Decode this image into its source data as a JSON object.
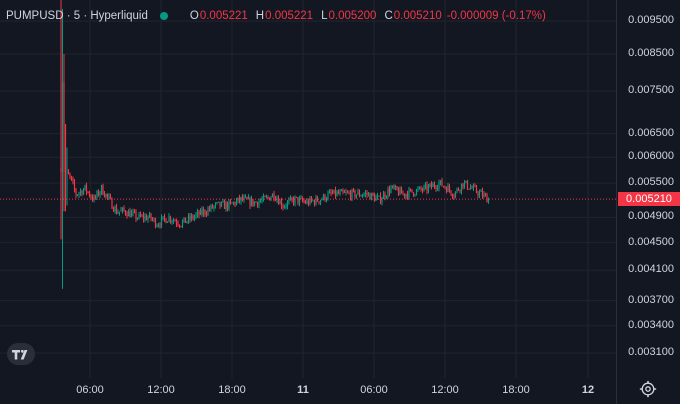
{
  "header": {
    "symbol": "PUMPUSD",
    "interval": "5",
    "exchange": "Hyperliquid",
    "title": "PUMPUSD · 5 · Hyperliquid",
    "status_color": "#089981",
    "ohlc": {
      "o_label": "O",
      "o_value": "0.005221",
      "h_label": "H",
      "h_value": "0.005221",
      "l_label": "L",
      "l_value": "0.005200",
      "c_label": "C",
      "c_value": "0.005210",
      "change": "-0.000009 (-0.17%)"
    }
  },
  "colors": {
    "background": "#131722",
    "grid": "#1f2430",
    "up": "#089981",
    "down": "#f23645",
    "text": "#d1d4dc"
  },
  "price_axis": {
    "ticks": [
      "0.009500",
      "0.008500",
      "0.007500",
      "0.006500",
      "0.006000",
      "0.005500",
      "0.004900",
      "0.004500",
      "0.004100",
      "0.003700",
      "0.003400",
      "0.003100"
    ],
    "last_price": "0.005210"
  },
  "time_axis": {
    "ticks": [
      {
        "label": "06:00",
        "bold": false
      },
      {
        "label": "12:00",
        "bold": false
      },
      {
        "label": "18:00",
        "bold": false
      },
      {
        "label": "11",
        "bold": true
      },
      {
        "label": "06:00",
        "bold": false
      },
      {
        "label": "12:00",
        "bold": false
      },
      {
        "label": "18:00",
        "bold": false
      },
      {
        "label": "12",
        "bold": true
      }
    ]
  },
  "chart_data": {
    "type": "candlestick",
    "y_scale": "log",
    "ylim": [
      0.00285,
      0.0102
    ],
    "last_close": 0.00521,
    "anchor_points": [
      [
        0,
        0.0058
      ],
      [
        1,
        0.0078
      ],
      [
        3,
        0.0057
      ],
      [
        6,
        0.0056
      ],
      [
        10,
        0.0053
      ],
      [
        16,
        0.0054
      ],
      [
        22,
        0.0052
      ],
      [
        27,
        0.0054
      ],
      [
        32,
        0.0052
      ],
      [
        37,
        0.005
      ],
      [
        43,
        0.005
      ],
      [
        51,
        0.0049
      ],
      [
        59,
        0.0049
      ],
      [
        64,
        0.0048
      ],
      [
        72,
        0.0049
      ],
      [
        80,
        0.0048
      ],
      [
        88,
        0.0049
      ],
      [
        96,
        0.005
      ],
      [
        104,
        0.0051
      ],
      [
        112,
        0.0051
      ],
      [
        120,
        0.0052
      ],
      [
        128,
        0.00515
      ],
      [
        136,
        0.0052
      ],
      [
        142,
        0.0053
      ],
      [
        148,
        0.0051
      ],
      [
        156,
        0.0052
      ],
      [
        164,
        0.00515
      ],
      [
        172,
        0.0052
      ],
      [
        180,
        0.0053
      ],
      [
        188,
        0.0053
      ],
      [
        196,
        0.0053
      ],
      [
        204,
        0.0053
      ],
      [
        212,
        0.0052
      ],
      [
        220,
        0.0054
      ],
      [
        228,
        0.0053
      ],
      [
        236,
        0.00535
      ],
      [
        244,
        0.0054
      ],
      [
        252,
        0.0055
      ],
      [
        258,
        0.0054
      ],
      [
        262,
        0.0053
      ],
      [
        268,
        0.0055
      ],
      [
        274,
        0.0054
      ],
      [
        280,
        0.0053
      ],
      [
        285,
        0.00521
      ]
    ],
    "spikes": [
      {
        "bar": 0,
        "high": 0.0102,
        "low": 0.00455
      },
      {
        "bar": 1,
        "high": 0.0099,
        "low": 0.00385
      },
      {
        "bar": 2,
        "high": 0.0085,
        "low": 0.005
      },
      {
        "bar": 3,
        "high": 0.0065,
        "low": 0.005
      },
      {
        "bar": 4,
        "high": 0.0062,
        "low": 0.0051
      }
    ]
  }
}
